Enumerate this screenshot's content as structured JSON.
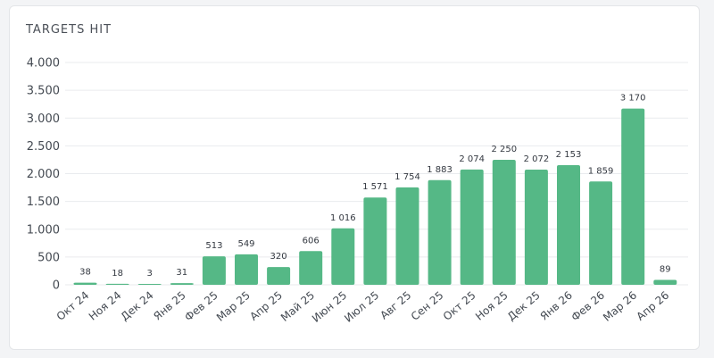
{
  "card": {
    "title": "TARGETS HIT"
  },
  "chart_data": {
    "type": "bar",
    "title": "TARGETS HIT",
    "xlabel": "",
    "ylabel": "",
    "categories": [
      "Окт 24",
      "Ноя 24",
      "Дек 24",
      "Янв 25",
      "Фев 25",
      "Мар 25",
      "Апр 25",
      "Май 25",
      "Июн 25",
      "Июл 25",
      "Авг 25",
      "Сен 25",
      "Окт 25",
      "Ноя 25",
      "Дек 25",
      "Янв 26",
      "Фев 26",
      "Мар 26",
      "Апр 26"
    ],
    "values": [
      38,
      18,
      3,
      31,
      513,
      549,
      320,
      606,
      1016,
      1571,
      1754,
      1883,
      2074,
      2250,
      2072,
      2153,
      1859,
      3170,
      89
    ],
    "value_labels": [
      "38",
      "18",
      "3",
      "31",
      "513",
      "549",
      "320",
      "606",
      "1 016",
      "1 571",
      "1 754",
      "1 883",
      "2 074",
      "2 250",
      "2 072",
      "2 153",
      "1 859",
      "3 170",
      "89"
    ],
    "yticks": [
      0,
      500,
      1000,
      1500,
      2000,
      2500,
      3000,
      3500,
      4000
    ],
    "ytick_labels": [
      "0",
      "500",
      "1.000",
      "1.500",
      "2.000",
      "2.500",
      "3.000",
      "3.500",
      "4.000"
    ],
    "ylim": [
      0,
      4000
    ],
    "grid": true,
    "bar_color": "#55b886",
    "grid_color": "#e9ebee"
  }
}
